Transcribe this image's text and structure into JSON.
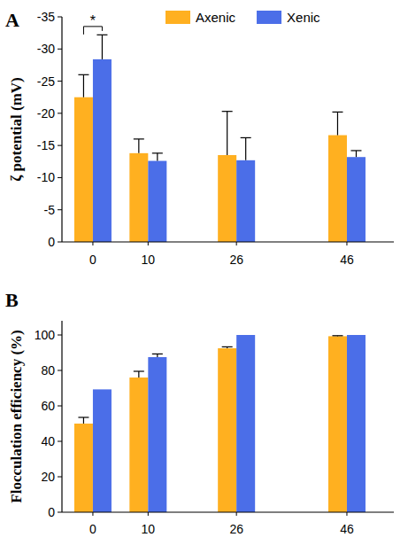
{
  "chart_data": [
    {
      "type": "bar",
      "title": "A",
      "y_label": "ζ potential (mV)",
      "x": [
        0,
        10,
        26,
        46
      ],
      "xlim": [
        -5.6,
        54.5
      ],
      "xticks": [
        0,
        10,
        26,
        46
      ],
      "ylim": [
        0,
        -35
      ],
      "yticks": [
        0,
        -5,
        -10,
        -15,
        -20,
        -25,
        -30,
        -35
      ],
      "grid": false,
      "legend": "top",
      "series": [
        {
          "name": "Axenic",
          "color": "#ffb020",
          "values": [
            -22.5,
            -13.8,
            -13.5,
            -16.6
          ],
          "errors": [
            3.5,
            2.2,
            6.8,
            3.6
          ]
        },
        {
          "name": "Xenic",
          "color": "#4b6ee8",
          "values": [
            -28.4,
            -12.6,
            -12.7,
            -13.2
          ],
          "errors": [
            3.8,
            1.2,
            3.5,
            1.0
          ]
        }
      ],
      "annotations": [
        {
          "text": "*",
          "x": 0,
          "y": -33.5
        }
      ]
    },
    {
      "type": "bar",
      "title": "B",
      "y_label": "Flocculation efficiency (%)",
      "x": [
        0,
        10,
        26,
        46
      ],
      "xlim": [
        -5.6,
        54.5
      ],
      "xticks": [
        0,
        10,
        26,
        46
      ],
      "ylim": [
        0,
        108
      ],
      "yticks": [
        0,
        20,
        40,
        60,
        80,
        100
      ],
      "grid": false,
      "series": [
        {
          "color": "#ffb020",
          "values": [
            50,
            76,
            92.5,
            99.3
          ],
          "errors": [
            3.5,
            3.5,
            0.8,
            0.3
          ]
        },
        {
          "color": "#4b6ee8",
          "values": [
            69.3,
            87.5,
            100,
            100
          ],
          "errors": [
            0,
            1.8,
            0,
            0
          ]
        }
      ]
    }
  ]
}
